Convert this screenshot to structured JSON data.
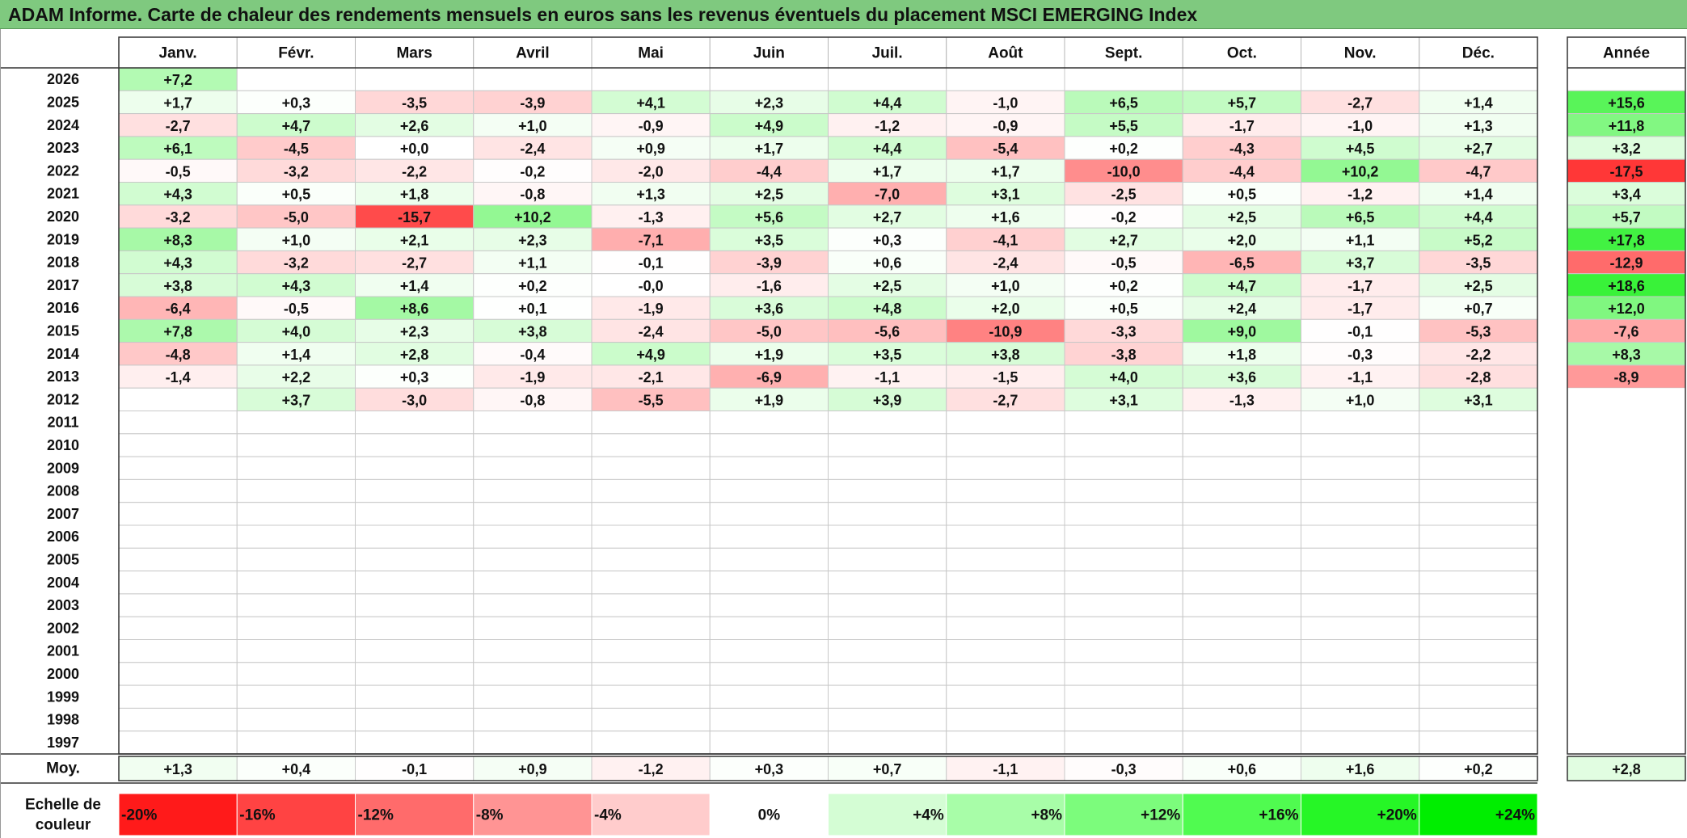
{
  "title": "ADAM Informe. Carte de chaleur des rendements mensuels en euros sans les revenus éventuels du placement MSCI EMERGING Index",
  "chart_data": {
    "type": "heatmap",
    "title": "ADAM Informe. Carte de chaleur des rendements mensuels en euros sans les revenus éventuels du placement MSCI EMERGING Index",
    "columns": [
      "Janv.",
      "Févr.",
      "Mars",
      "Avril",
      "Mai",
      "Juin",
      "Juil.",
      "Août",
      "Sept.",
      "Oct.",
      "Nov.",
      "Déc."
    ],
    "year_header": "Année",
    "rows": [
      {
        "year": "2026",
        "months": [
          "+7,2",
          "",
          "",
          "",
          "",
          "",
          "",
          "",
          "",
          "",
          "",
          ""
        ],
        "annual": ""
      },
      {
        "year": "2025",
        "months": [
          "+1,7",
          "+0,3",
          "-3,5",
          "-3,9",
          "+4,1",
          "+2,3",
          "+4,4",
          "-1,0",
          "+6,5",
          "+5,7",
          "-2,7",
          "+1,4"
        ],
        "annual": "+15,6"
      },
      {
        "year": "2024",
        "months": [
          "-2,7",
          "+4,7",
          "+2,6",
          "+1,0",
          "-0,9",
          "+4,9",
          "-1,2",
          "-0,9",
          "+5,5",
          "-1,7",
          "-1,0",
          "+1,3"
        ],
        "annual": "+11,8"
      },
      {
        "year": "2023",
        "months": [
          "+6,1",
          "-4,5",
          "+0,0",
          "-2,4",
          "+0,9",
          "+1,7",
          "+4,4",
          "-5,4",
          "+0,2",
          "-4,3",
          "+4,5",
          "+2,7"
        ],
        "annual": "+3,2"
      },
      {
        "year": "2022",
        "months": [
          "-0,5",
          "-3,2",
          "-2,2",
          "-0,2",
          "-2,0",
          "-4,4",
          "+1,7",
          "+1,7",
          "-10,0",
          "-4,4",
          "+10,2",
          "-4,7"
        ],
        "annual": "-17,5"
      },
      {
        "year": "2021",
        "months": [
          "+4,3",
          "+0,5",
          "+1,8",
          "-0,8",
          "+1,3",
          "+2,5",
          "-7,0",
          "+3,1",
          "-2,5",
          "+0,5",
          "-1,2",
          "+1,4"
        ],
        "annual": "+3,4"
      },
      {
        "year": "2020",
        "months": [
          "-3,2",
          "-5,0",
          "-15,7",
          "+10,2",
          "-1,3",
          "+5,6",
          "+2,7",
          "+1,6",
          "-0,2",
          "+2,5",
          "+6,5",
          "+4,4"
        ],
        "annual": "+5,7"
      },
      {
        "year": "2019",
        "months": [
          "+8,3",
          "+1,0",
          "+2,1",
          "+2,3",
          "-7,1",
          "+3,5",
          "+0,3",
          "-4,1",
          "+2,7",
          "+2,0",
          "+1,1",
          "+5,2"
        ],
        "annual": "+17,8"
      },
      {
        "year": "2018",
        "months": [
          "+4,3",
          "-3,2",
          "-2,7",
          "+1,1",
          "-0,1",
          "-3,9",
          "+0,6",
          "-2,4",
          "-0,5",
          "-6,5",
          "+3,7",
          "-3,5"
        ],
        "annual": "-12,9"
      },
      {
        "year": "2017",
        "months": [
          "+3,8",
          "+4,3",
          "+1,4",
          "+0,2",
          "-0,0",
          "-1,6",
          "+2,5",
          "+1,0",
          "+0,2",
          "+4,7",
          "-1,7",
          "+2,5"
        ],
        "annual": "+18,6"
      },
      {
        "year": "2016",
        "months": [
          "-6,4",
          "-0,5",
          "+8,6",
          "+0,1",
          "-1,9",
          "+3,6",
          "+4,8",
          "+2,0",
          "+0,5",
          "+2,4",
          "-1,7",
          "+0,7"
        ],
        "annual": "+12,0"
      },
      {
        "year": "2015",
        "months": [
          "+7,8",
          "+4,0",
          "+2,3",
          "+3,8",
          "-2,4",
          "-5,0",
          "-5,6",
          "-10,9",
          "-3,3",
          "+9,0",
          "-0,1",
          "-5,3"
        ],
        "annual": "-7,6"
      },
      {
        "year": "2014",
        "months": [
          "-4,8",
          "+1,4",
          "+2,8",
          "-0,4",
          "+4,9",
          "+1,9",
          "+3,5",
          "+3,8",
          "-3,8",
          "+1,8",
          "-0,3",
          "-2,2"
        ],
        "annual": "+8,3"
      },
      {
        "year": "2013",
        "months": [
          "-1,4",
          "+2,2",
          "+0,3",
          "-1,9",
          "-2,1",
          "-6,9",
          "-1,1",
          "-1,5",
          "+4,0",
          "+3,6",
          "-1,1",
          "-2,8"
        ],
        "annual": "-8,9"
      },
      {
        "year": "2012",
        "months": [
          "",
          "+3,7",
          "-3,0",
          "-0,8",
          "-5,5",
          "+1,9",
          "+3,9",
          "-2,7",
          "+3,1",
          "-1,3",
          "+1,0",
          "+3,1"
        ],
        "annual": ""
      },
      {
        "year": "2011",
        "months": [
          "",
          "",
          "",
          "",
          "",
          "",
          "",
          "",
          "",
          "",
          "",
          ""
        ],
        "annual": ""
      },
      {
        "year": "2010",
        "months": [
          "",
          "",
          "",
          "",
          "",
          "",
          "",
          "",
          "",
          "",
          "",
          ""
        ],
        "annual": ""
      },
      {
        "year": "2009",
        "months": [
          "",
          "",
          "",
          "",
          "",
          "",
          "",
          "",
          "",
          "",
          "",
          ""
        ],
        "annual": ""
      },
      {
        "year": "2008",
        "months": [
          "",
          "",
          "",
          "",
          "",
          "",
          "",
          "",
          "",
          "",
          "",
          ""
        ],
        "annual": ""
      },
      {
        "year": "2007",
        "months": [
          "",
          "",
          "",
          "",
          "",
          "",
          "",
          "",
          "",
          "",
          "",
          ""
        ],
        "annual": ""
      },
      {
        "year": "2006",
        "months": [
          "",
          "",
          "",
          "",
          "",
          "",
          "",
          "",
          "",
          "",
          "",
          ""
        ],
        "annual": ""
      },
      {
        "year": "2005",
        "months": [
          "",
          "",
          "",
          "",
          "",
          "",
          "",
          "",
          "",
          "",
          "",
          ""
        ],
        "annual": ""
      },
      {
        "year": "2004",
        "months": [
          "",
          "",
          "",
          "",
          "",
          "",
          "",
          "",
          "",
          "",
          "",
          ""
        ],
        "annual": ""
      },
      {
        "year": "2003",
        "months": [
          "",
          "",
          "",
          "",
          "",
          "",
          "",
          "",
          "",
          "",
          "",
          ""
        ],
        "annual": ""
      },
      {
        "year": "2002",
        "months": [
          "",
          "",
          "",
          "",
          "",
          "",
          "",
          "",
          "",
          "",
          "",
          ""
        ],
        "annual": ""
      },
      {
        "year": "2001",
        "months": [
          "",
          "",
          "",
          "",
          "",
          "",
          "",
          "",
          "",
          "",
          "",
          ""
        ],
        "annual": ""
      },
      {
        "year": "2000",
        "months": [
          "",
          "",
          "",
          "",
          "",
          "",
          "",
          "",
          "",
          "",
          "",
          ""
        ],
        "annual": ""
      },
      {
        "year": "1999",
        "months": [
          "",
          "",
          "",
          "",
          "",
          "",
          "",
          "",
          "",
          "",
          "",
          ""
        ],
        "annual": ""
      },
      {
        "year": "1998",
        "months": [
          "",
          "",
          "",
          "",
          "",
          "",
          "",
          "",
          "",
          "",
          "",
          ""
        ],
        "annual": ""
      },
      {
        "year": "1997",
        "months": [
          "",
          "",
          "",
          "",
          "",
          "",
          "",
          "",
          "",
          "",
          "",
          ""
        ],
        "annual": ""
      }
    ],
    "average": {
      "label": "Moy.",
      "months": [
        "+1,3",
        "+0,4",
        "-0,1",
        "+0,9",
        "-1,2",
        "+0,3",
        "+0,7",
        "-1,1",
        "-0,3",
        "+0,6",
        "+1,6",
        "+0,2"
      ],
      "annual": "+2,8"
    },
    "scale": {
      "label_lines": [
        "Echelle de",
        "couleur"
      ],
      "items": [
        {
          "label": "-20%",
          "color": "#ff1a1a",
          "align": "left"
        },
        {
          "label": "-16%",
          "color": "#ff4343",
          "align": "left"
        },
        {
          "label": "-12%",
          "color": "#ff6b6b",
          "align": "left"
        },
        {
          "label": "-8%",
          "color": "#ff9494",
          "align": "left"
        },
        {
          "label": "-4%",
          "color": "#ffcccc",
          "align": "left"
        },
        {
          "label": "0%",
          "color": "#ffffff",
          "align": "center"
        },
        {
          "label": "+4%",
          "color": "#d4fdd4",
          "align": "right"
        },
        {
          "label": "+8%",
          "color": "#a8fda8",
          "align": "right"
        },
        {
          "label": "+12%",
          "color": "#7cfc7c",
          "align": "right"
        },
        {
          "label": "+16%",
          "color": "#50fb50",
          "align": "right"
        },
        {
          "label": "+20%",
          "color": "#26f626",
          "align": "right"
        },
        {
          "label": "+24%",
          "color": "#00ee00",
          "align": "right"
        }
      ]
    },
    "color_scale": {
      "min": -20,
      "max": 24,
      "neg_color": "#ff1a1a",
      "pos_color": "#00ee00",
      "zero_color": "#ffffff"
    }
  }
}
